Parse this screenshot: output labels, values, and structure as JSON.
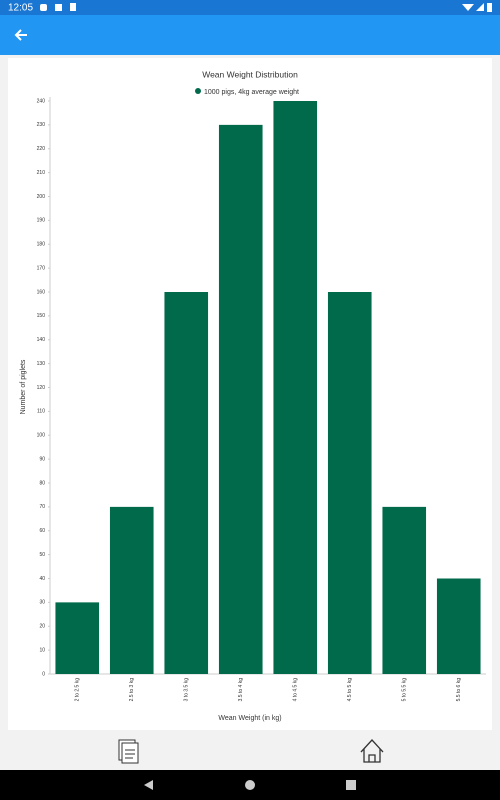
{
  "status_bar": {
    "time": "12:05"
  },
  "chart_data": {
    "type": "bar",
    "title": "Wean Weight Distribution",
    "x_label": "Wean Weight (in kg)",
    "y_label": "Number of piglets",
    "categories": [
      "2 to 2.5 kg",
      "2.5 to 3 kg",
      "3 to 3.5 kg",
      "3.5 to 4 kg",
      "4 to 4.5 kg",
      "4.5 to 5 kg",
      "5 to 5.5 kg",
      "5.5 to 6 kg"
    ],
    "series": [
      {
        "name": "1000 pigs, 4kg average weight",
        "color": "#006a4b",
        "values": [
          30,
          70,
          160,
          230,
          240,
          160,
          70,
          40
        ]
      }
    ],
    "ylim": [
      0,
      240
    ],
    "yticks": [
      0,
      10,
      20,
      30,
      40,
      50,
      60,
      70,
      80,
      90,
      100,
      110,
      120,
      130,
      140,
      150,
      160,
      170,
      180,
      190,
      200,
      210,
      220,
      230,
      240
    ],
    "grid": false,
    "legend": "top"
  }
}
